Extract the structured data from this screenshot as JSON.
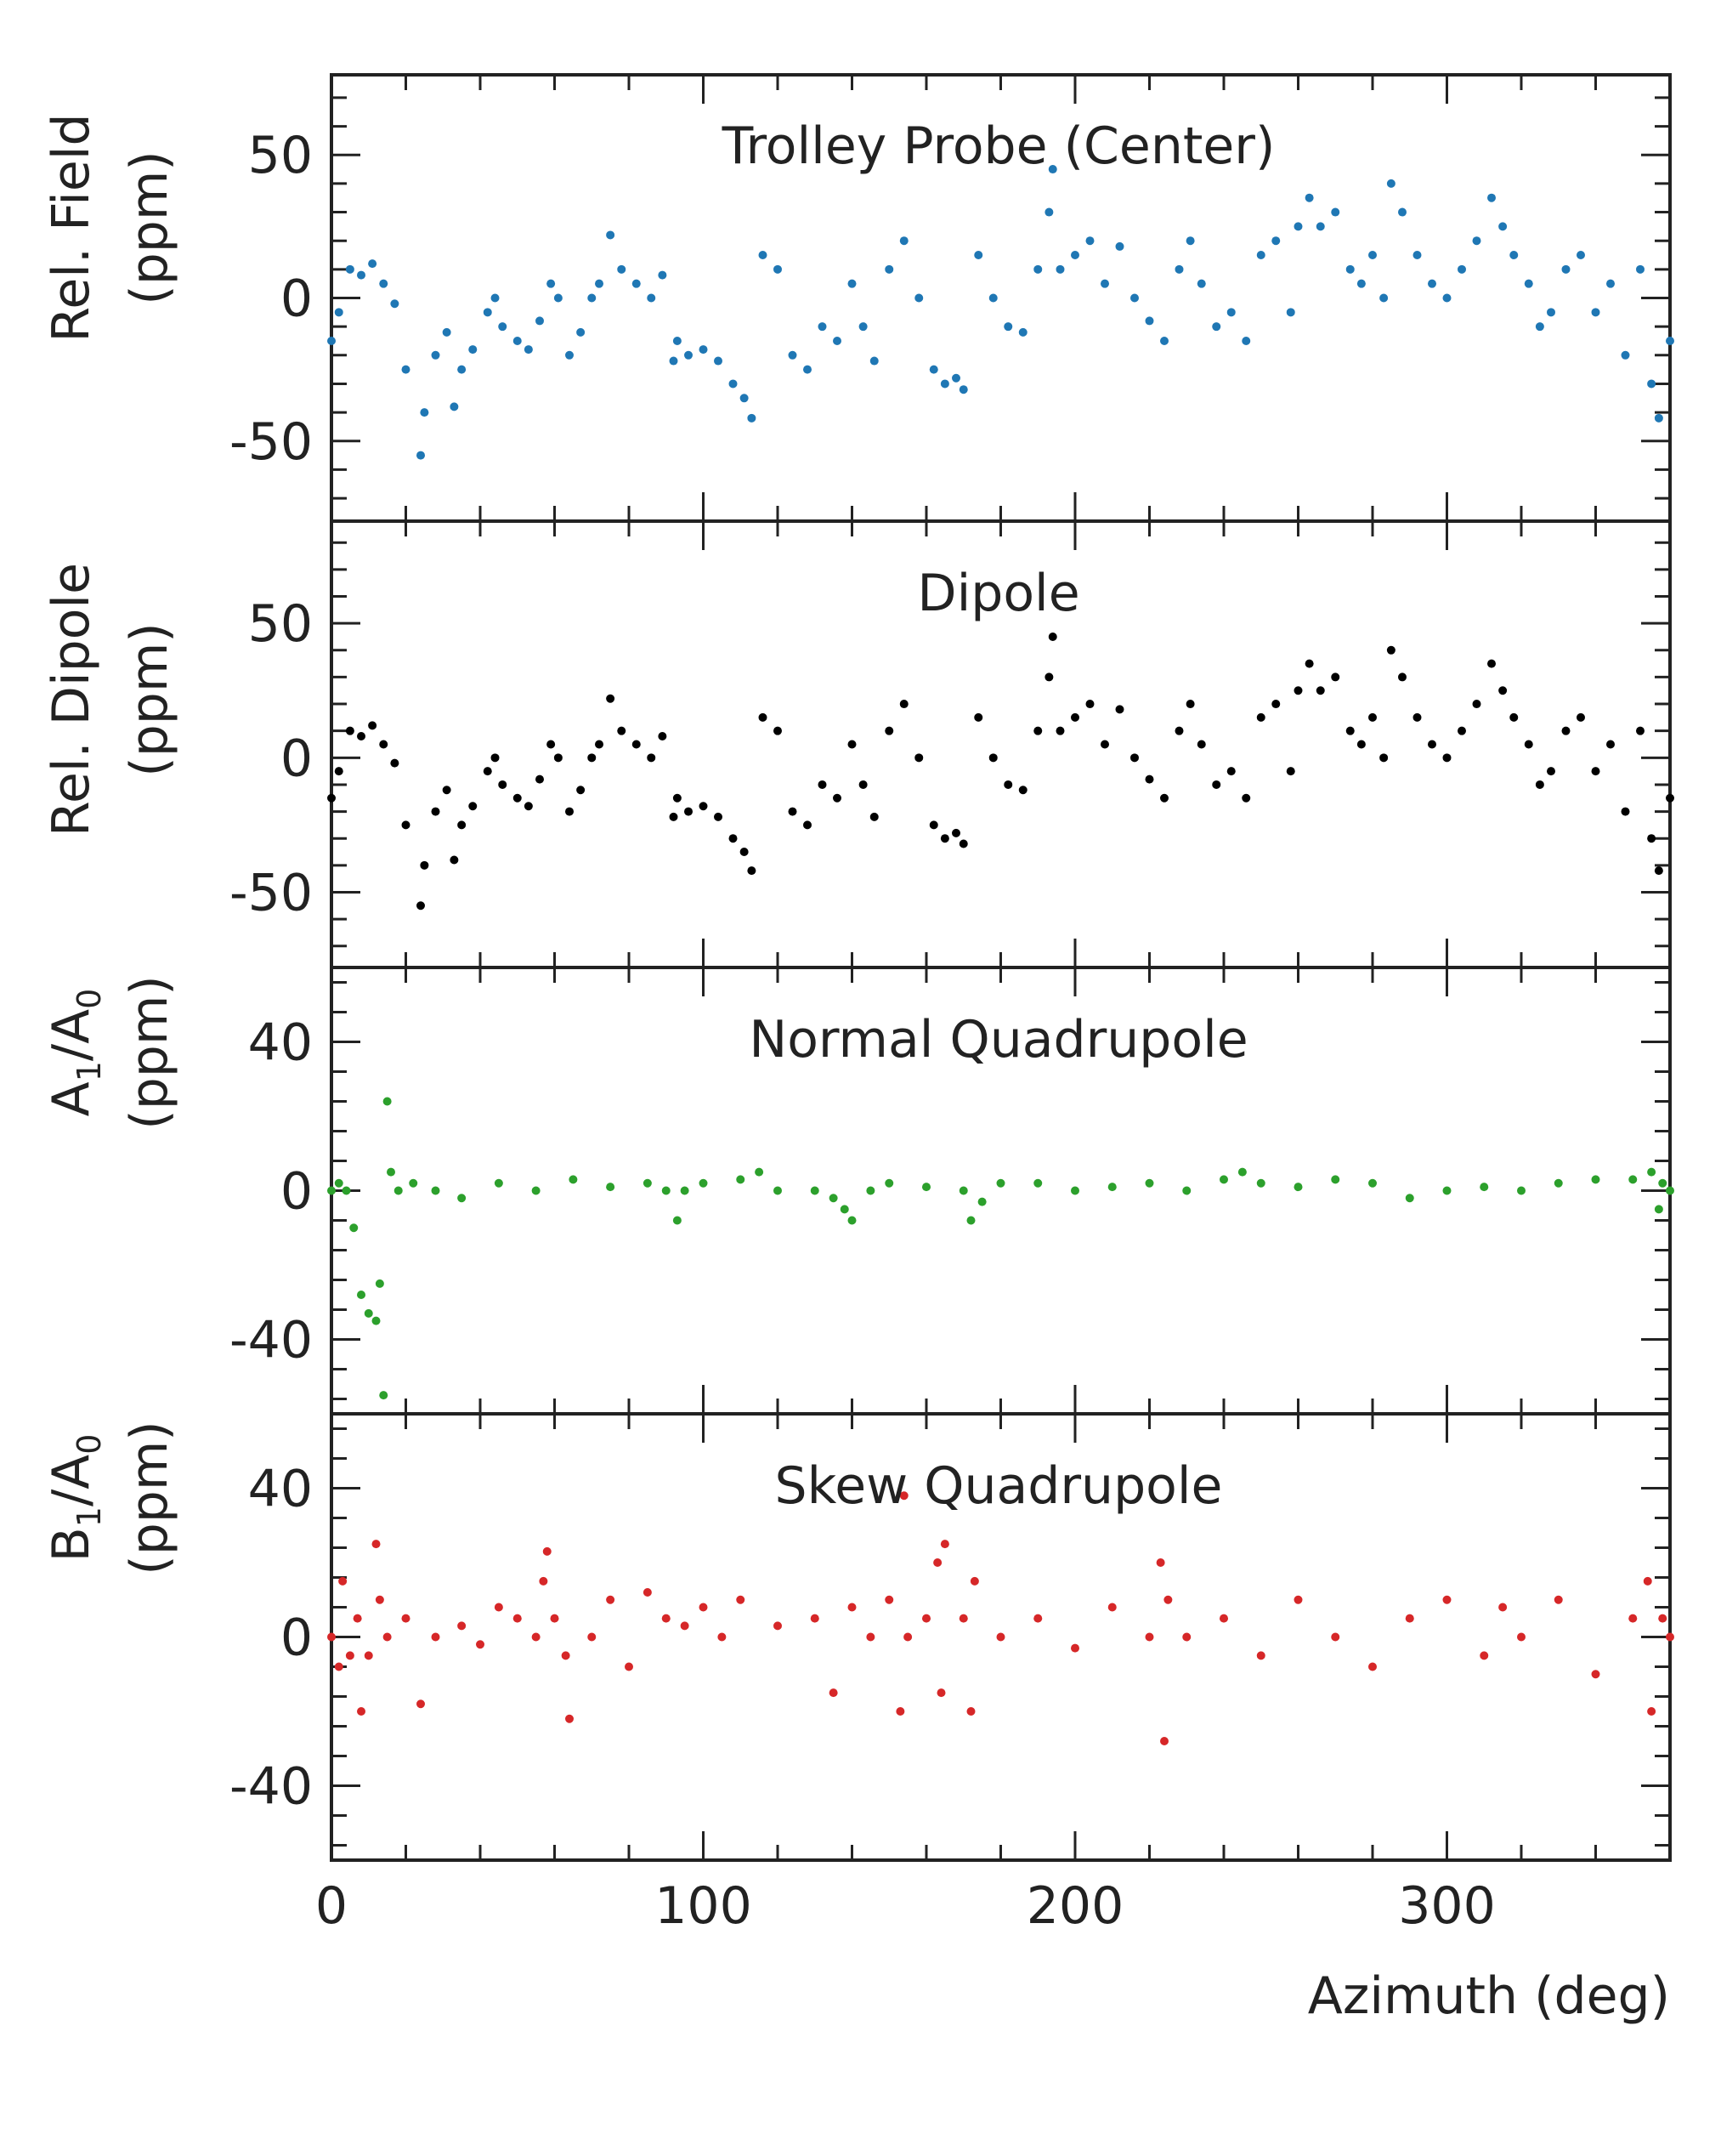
{
  "colors": {
    "field": "#1f77b4",
    "dipole": "#000000",
    "normal_quad": "#2ca02c",
    "skew_quad": "#d62728",
    "axes": "#222222"
  },
  "chart_data": [
    {
      "type": "scatter",
      "title": "Trolley Probe (Center)",
      "ylabel_line1": "Rel. Field",
      "ylabel_line2": "(ppm)",
      "xlim": [
        0,
        360
      ],
      "ylim": [
        -78,
        78
      ],
      "yticks": [
        50,
        0,
        -50
      ],
      "ytick_labels": [
        "50",
        "0",
        "-50"
      ],
      "series": {
        "name": "Rel. Field",
        "color": "#1f77b4",
        "x": [
          0,
          2,
          5,
          8,
          11,
          14,
          17,
          20,
          24,
          25,
          28,
          31,
          33,
          35,
          38,
          42,
          44,
          46,
          50,
          53,
          56,
          59,
          61,
          64,
          67,
          70,
          72,
          75,
          78,
          82,
          86,
          89,
          92,
          93,
          96,
          100,
          104,
          108,
          111,
          113,
          116,
          120,
          124,
          128,
          132,
          136,
          140,
          143,
          146,
          150,
          154,
          158,
          162,
          165,
          168,
          170,
          174,
          178,
          182,
          186,
          190,
          193,
          194,
          196,
          200,
          204,
          208,
          212,
          216,
          220,
          224,
          228,
          231,
          234,
          238,
          242,
          246,
          250,
          254,
          258,
          260,
          263,
          266,
          270,
          274,
          277,
          280,
          283,
          285,
          288,
          292,
          296,
          300,
          304,
          308,
          312,
          315,
          318,
          322,
          325,
          328,
          332,
          336,
          340,
          344,
          348,
          352,
          355,
          357,
          360
        ],
        "y": [
          -15,
          -5,
          10,
          8,
          12,
          5,
          -2,
          -25,
          -55,
          -40,
          -20,
          -12,
          -38,
          -25,
          -18,
          -5,
          0,
          -10,
          -15,
          -18,
          -8,
          5,
          0,
          -20,
          -12,
          0,
          5,
          22,
          10,
          5,
          0,
          8,
          -22,
          -15,
          -20,
          -18,
          -22,
          -30,
          -35,
          -42,
          15,
          10,
          -20,
          -25,
          -10,
          -15,
          5,
          -10,
          -22,
          10,
          20,
          0,
          -25,
          -30,
          -28,
          -32,
          15,
          0,
          -10,
          -12,
          10,
          30,
          45,
          10,
          15,
          20,
          5,
          18,
          0,
          -8,
          -15,
          10,
          20,
          5,
          -10,
          -5,
          -15,
          15,
          20,
          -5,
          25,
          35,
          25,
          30,
          10,
          5,
          15,
          0,
          40,
          30,
          15,
          5,
          0,
          10,
          20,
          35,
          25,
          15,
          5,
          -10,
          -5,
          10,
          15,
          -5,
          5,
          -20,
          10,
          -30,
          -42,
          -15
        ]
      }
    },
    {
      "type": "scatter",
      "title": "Dipole",
      "ylabel_line1": "Rel. Dipole",
      "ylabel_line2": "(ppm)",
      "xlim": [
        0,
        360
      ],
      "ylim": [
        -78,
        88
      ],
      "yticks": [
        50,
        0,
        -50
      ],
      "ytick_labels": [
        "50",
        "0",
        "-50"
      ],
      "series": {
        "name": "Rel. Dipole",
        "color": "#000000",
        "x": [
          0,
          2,
          5,
          8,
          11,
          14,
          17,
          20,
          24,
          25,
          28,
          31,
          33,
          35,
          38,
          42,
          44,
          46,
          50,
          53,
          56,
          59,
          61,
          64,
          67,
          70,
          72,
          75,
          78,
          82,
          86,
          89,
          92,
          93,
          96,
          100,
          104,
          108,
          111,
          113,
          116,
          120,
          124,
          128,
          132,
          136,
          140,
          143,
          146,
          150,
          154,
          158,
          162,
          165,
          168,
          170,
          174,
          178,
          182,
          186,
          190,
          193,
          194,
          196,
          200,
          204,
          208,
          212,
          216,
          220,
          224,
          228,
          231,
          234,
          238,
          242,
          246,
          250,
          254,
          258,
          260,
          263,
          266,
          270,
          274,
          277,
          280,
          283,
          285,
          288,
          292,
          296,
          300,
          304,
          308,
          312,
          315,
          318,
          322,
          325,
          328,
          332,
          336,
          340,
          344,
          348,
          352,
          355,
          357,
          360
        ],
        "y": [
          -15,
          -5,
          10,
          8,
          12,
          5,
          -2,
          -25,
          -55,
          -40,
          -20,
          -12,
          -38,
          -25,
          -18,
          -5,
          0,
          -10,
          -15,
          -18,
          -8,
          5,
          0,
          -20,
          -12,
          0,
          5,
          22,
          10,
          5,
          0,
          8,
          -22,
          -15,
          -20,
          -18,
          -22,
          -30,
          -35,
          -42,
          15,
          10,
          -20,
          -25,
          -10,
          -15,
          5,
          -10,
          -22,
          10,
          20,
          0,
          -25,
          -30,
          -28,
          -32,
          15,
          0,
          -10,
          -12,
          10,
          30,
          45,
          10,
          15,
          20,
          5,
          18,
          0,
          -8,
          -15,
          10,
          20,
          5,
          -10,
          -5,
          -15,
          15,
          20,
          -5,
          25,
          35,
          25,
          30,
          10,
          5,
          15,
          0,
          40,
          30,
          15,
          5,
          0,
          10,
          20,
          35,
          25,
          15,
          5,
          -10,
          -5,
          10,
          15,
          -5,
          5,
          -20,
          10,
          -30,
          -42,
          -15
        ]
      }
    },
    {
      "type": "scatter",
      "title": "Normal Quadrupole",
      "ylabel_line1": "A",
      "ylabel_sub1": "1",
      "ylabel_mid": "/A",
      "ylabel_sub2": "0",
      "ylabel_line2": "(ppm)",
      "xlim": [
        0,
        360
      ],
      "ylim": [
        -60,
        60
      ],
      "yticks": [
        40,
        0,
        -40
      ],
      "ytick_labels": [
        "40",
        "0",
        "-40"
      ],
      "series": {
        "name": "A1/A0",
        "color": "#2ca02c",
        "x": [
          0,
          2,
          4,
          6,
          8,
          10,
          12,
          13,
          14,
          15,
          16,
          18,
          22,
          28,
          35,
          45,
          55,
          65,
          75,
          85,
          90,
          93,
          95,
          100,
          110,
          115,
          120,
          130,
          135,
          138,
          140,
          145,
          150,
          160,
          170,
          172,
          175,
          180,
          190,
          200,
          210,
          220,
          230,
          240,
          245,
          250,
          260,
          270,
          280,
          290,
          300,
          310,
          320,
          330,
          340,
          350,
          355,
          357,
          358,
          360
        ],
        "y": [
          0,
          2,
          0,
          -10,
          -28,
          -33,
          -35,
          -25,
          -55,
          24,
          5,
          0,
          2,
          0,
          -2,
          2,
          0,
          3,
          1,
          2,
          0,
          -8,
          0,
          2,
          3,
          5,
          0,
          0,
          -2,
          -5,
          -8,
          0,
          2,
          1,
          0,
          -8,
          -3,
          2,
          2,
          0,
          1,
          2,
          0,
          3,
          5,
          2,
          1,
          3,
          2,
          -2,
          0,
          1,
          0,
          2,
          3,
          3,
          5,
          -5,
          2,
          0
        ]
      }
    },
    {
      "type": "scatter",
      "title": "Skew Quadrupole",
      "ylabel_line1": "B",
      "ylabel_sub1": "1",
      "ylabel_mid": "/A",
      "ylabel_sub2": "0",
      "ylabel_line2": "(ppm)",
      "xlim": [
        0,
        360
      ],
      "ylim": [
        -60,
        60
      ],
      "yticks": [
        40,
        0,
        -40
      ],
      "ytick_labels": [
        "40",
        "0",
        "-40"
      ],
      "series": {
        "name": "B1/A0",
        "color": "#d62728",
        "x": [
          0,
          2,
          3,
          5,
          7,
          8,
          10,
          12,
          13,
          15,
          20,
          24,
          28,
          35,
          40,
          45,
          50,
          55,
          57,
          58,
          60,
          63,
          64,
          70,
          75,
          80,
          85,
          90,
          95,
          100,
          105,
          110,
          120,
          130,
          135,
          140,
          145,
          150,
          153,
          154,
          155,
          160,
          163,
          164,
          165,
          170,
          172,
          173,
          180,
          190,
          200,
          210,
          220,
          223,
          224,
          225,
          230,
          240,
          250,
          260,
          270,
          280,
          290,
          300,
          310,
          315,
          320,
          330,
          340,
          350,
          354,
          355,
          358,
          360
        ],
        "y": [
          0,
          -8,
          15,
          -5,
          5,
          -20,
          -5,
          25,
          10,
          0,
          5,
          -18,
          0,
          3,
          -2,
          8,
          5,
          0,
          15,
          23,
          5,
          -5,
          -22,
          0,
          10,
          -8,
          12,
          5,
          3,
          8,
          0,
          10,
          3,
          5,
          -15,
          8,
          0,
          10,
          -20,
          38,
          0,
          5,
          20,
          -15,
          25,
          5,
          -20,
          15,
          0,
          5,
          -3,
          8,
          0,
          20,
          -28,
          10,
          0,
          5,
          -5,
          10,
          0,
          -8,
          5,
          10,
          -5,
          8,
          0,
          10,
          -10,
          5,
          15,
          -20,
          5,
          0
        ]
      }
    }
  ],
  "x_axis": {
    "label": "Azimuth (deg)",
    "ticks": [
      0,
      100,
      200,
      300
    ],
    "tick_labels": [
      "0",
      "100",
      "200",
      "300"
    ]
  }
}
